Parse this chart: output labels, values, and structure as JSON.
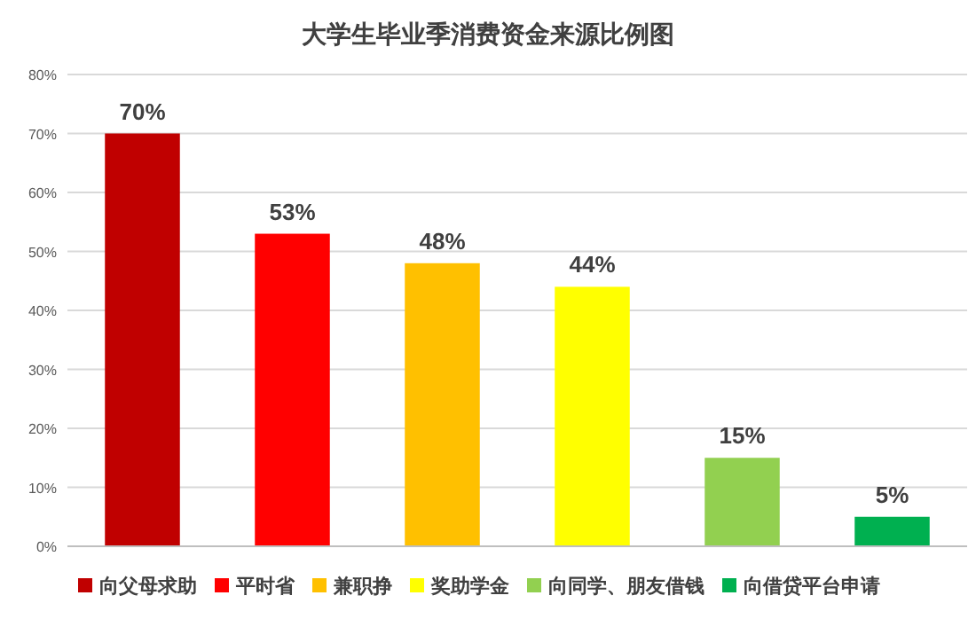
{
  "chart_data": {
    "type": "bar",
    "title": "大学生毕业季消费资金来源比例图",
    "categories": [
      null,
      null,
      null,
      null,
      null,
      null
    ],
    "series": [
      {
        "name": "向父母求助",
        "color": "#c00000",
        "values": [
          70,
          null,
          null,
          null,
          null,
          null
        ],
        "value_labels": [
          "70%",
          null,
          null,
          null,
          null,
          null
        ]
      },
      {
        "name": "平时省",
        "color": "#ff0000",
        "values": [
          null,
          53,
          null,
          null,
          null,
          null
        ],
        "value_labels": [
          null,
          "53%",
          null,
          null,
          null,
          null
        ]
      },
      {
        "name": "兼职挣",
        "color": "#ffc000",
        "values": [
          null,
          null,
          48,
          null,
          null,
          null
        ],
        "value_labels": [
          null,
          null,
          "48%",
          null,
          null,
          null
        ]
      },
      {
        "name": "奖助学金",
        "color": "#ffff00",
        "values": [
          null,
          null,
          null,
          44,
          null,
          null
        ],
        "value_labels": [
          null,
          null,
          null,
          "44%",
          null,
          null
        ]
      },
      {
        "name": "向同学、朋友借钱",
        "color": "#92d050",
        "values": [
          null,
          null,
          null,
          null,
          15,
          null
        ],
        "value_labels": [
          null,
          null,
          null,
          null,
          "15%",
          null
        ]
      },
      {
        "name": "向借贷平台申请",
        "color": "#00b050",
        "values": [
          null,
          null,
          null,
          null,
          null,
          5
        ],
        "value_labels": [
          null,
          null,
          null,
          null,
          null,
          "5%"
        ]
      }
    ],
    "ylim": [
      0,
      80
    ],
    "yticks": [
      {
        "value": 0,
        "label": "0%"
      },
      {
        "value": 10,
        "label": "10%"
      },
      {
        "value": 20,
        "label": "20%"
      },
      {
        "value": 30,
        "label": "30%"
      },
      {
        "value": 40,
        "label": "40%"
      },
      {
        "value": 50,
        "label": "50%"
      },
      {
        "value": 60,
        "label": "60%"
      },
      {
        "value": 70,
        "label": "70%"
      },
      {
        "value": 80,
        "label": "80%"
      }
    ],
    "grid": "y",
    "legend": "bottom"
  }
}
